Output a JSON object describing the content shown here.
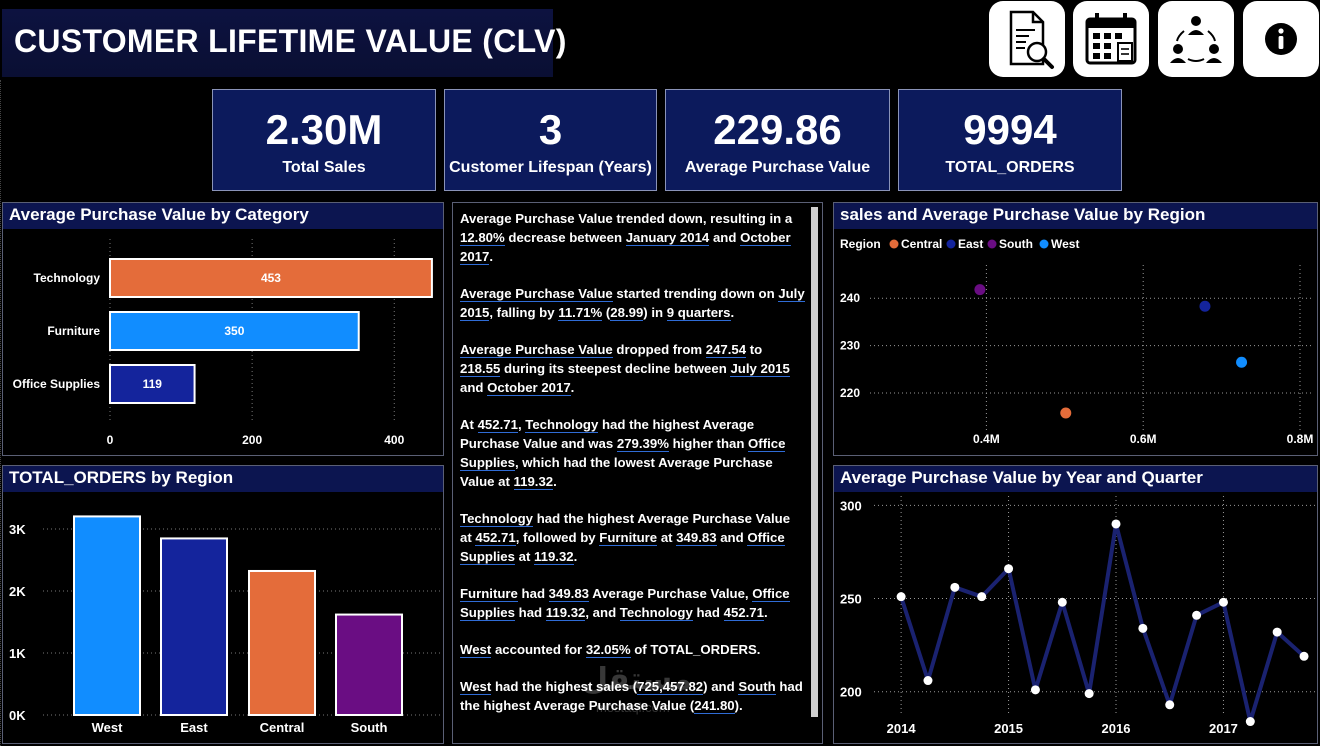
{
  "header": {
    "title": "CUSTOMER LIFETIME VALUE (CLV)"
  },
  "nav": [
    {
      "name": "report-search-icon"
    },
    {
      "name": "calendar-icon"
    },
    {
      "name": "team-network-icon"
    },
    {
      "name": "info-icon"
    }
  ],
  "kpis": [
    {
      "value": "2.30M",
      "label": "Total Sales"
    },
    {
      "value": "3",
      "label": "Customer Lifespan (Years)"
    },
    {
      "value": "229.86",
      "label": "Average Purchase Value"
    },
    {
      "value": "9994",
      "label": "TOTAL_ORDERS"
    }
  ],
  "panels": {
    "category": "Average Purchase Value by Category",
    "orders": "TOTAL_ORDERS by Region",
    "scatter": "sales and Average Purchase Value by Region",
    "trend": "Average Purchase Value by Year and Quarter"
  },
  "narrative": [
    [
      [
        "Average Purchase Value trended down, resulting in a ",
        0
      ],
      [
        "12.80%",
        1
      ],
      [
        " decrease between ",
        0
      ],
      [
        "January 2014",
        1
      ],
      [
        " and ",
        0
      ],
      [
        "October 2017",
        1
      ],
      [
        ".",
        0
      ]
    ],
    [
      [
        "Average Purchase Value",
        1
      ],
      [
        " started trending down on ",
        0
      ],
      [
        "July 2015",
        1
      ],
      [
        ", falling by ",
        0
      ],
      [
        "11.71%",
        1
      ],
      [
        " (",
        0
      ],
      [
        "28.99",
        1
      ],
      [
        ") in ",
        0
      ],
      [
        "9 quarters",
        1
      ],
      [
        ".",
        0
      ]
    ],
    [
      [
        "Average Purchase Value",
        1
      ],
      [
        " dropped from ",
        0
      ],
      [
        "247.54",
        1
      ],
      [
        " to ",
        0
      ],
      [
        "218.55",
        1
      ],
      [
        " during its steepest decline between ",
        0
      ],
      [
        "July 2015",
        1
      ],
      [
        " and ",
        0
      ],
      [
        "October 2017",
        1
      ],
      [
        ".",
        0
      ]
    ],
    [
      [
        "At ",
        0
      ],
      [
        "452.71",
        1
      ],
      [
        ", ",
        0
      ],
      [
        "Technology",
        1
      ],
      [
        " had the highest Average Purchase Value and was ",
        0
      ],
      [
        "279.39%",
        1
      ],
      [
        " higher than ",
        0
      ],
      [
        "Office Supplies",
        1
      ],
      [
        ", which had the lowest Average Purchase Value at ",
        0
      ],
      [
        "119.32",
        1
      ],
      [
        ".",
        0
      ]
    ],
    [
      [
        "Technology",
        1
      ],
      [
        " had the highest Average Purchase Value at ",
        0
      ],
      [
        "452.71",
        1
      ],
      [
        ", followed by ",
        0
      ],
      [
        "Furniture",
        1
      ],
      [
        " at ",
        0
      ],
      [
        "349.83",
        1
      ],
      [
        " and ",
        0
      ],
      [
        "Office Supplies",
        1
      ],
      [
        " at ",
        0
      ],
      [
        "119.32",
        1
      ],
      [
        ".",
        0
      ]
    ],
    [
      [
        "Furniture",
        1
      ],
      [
        " had ",
        0
      ],
      [
        "349.83",
        1
      ],
      [
        " Average Purchase Value, ",
        0
      ],
      [
        "Office Supplies",
        1
      ],
      [
        " had ",
        0
      ],
      [
        "119.32",
        1
      ],
      [
        ", and ",
        0
      ],
      [
        "Technology",
        1
      ],
      [
        " had ",
        0
      ],
      [
        "452.71",
        1
      ],
      [
        ".",
        0
      ]
    ],
    [
      [
        "West",
        1
      ],
      [
        " accounted for ",
        0
      ],
      [
        "32.05%",
        1
      ],
      [
        " of TOTAL_ORDERS.",
        0
      ]
    ],
    [
      [
        "West",
        1
      ],
      [
        " had the highest sales (",
        0
      ],
      [
        "725,457.82",
        1
      ],
      [
        ") and ",
        0
      ],
      [
        "South",
        1
      ],
      [
        " had the highest Average Purchase Value (",
        0
      ],
      [
        "241.80",
        1
      ],
      [
        ").",
        0
      ]
    ]
  ],
  "watermark": {
    "main": "مستقل",
    "sub": "mostaql.com"
  },
  "colors": {
    "Central": "#e46c3a",
    "East": "#14249c",
    "South": "#6a0d83",
    "West": "#118dff",
    "line": "#1a2270",
    "panel_header": "#0c1550",
    "kpi": "#0c1a5c"
  },
  "chart_data": [
    {
      "type": "bar",
      "orientation": "horizontal",
      "title": "Average Purchase Value by Category",
      "categories": [
        "Technology",
        "Furniture",
        "Office Supplies"
      ],
      "values": [
        453,
        350,
        119
      ],
      "bar_colors": [
        "#e46c3a",
        "#118dff",
        "#14249c"
      ],
      "xlim": [
        0,
        470
      ],
      "xticks": [
        0,
        200,
        400
      ],
      "grid": true
    },
    {
      "type": "bar",
      "title": "TOTAL_ORDERS by Region",
      "categories": [
        "West",
        "East",
        "Central",
        "South"
      ],
      "values": [
        3203,
        2848,
        2323,
        1620
      ],
      "bar_colors": [
        "#118dff",
        "#14249c",
        "#e46c3a",
        "#6a0d83"
      ],
      "ylim": [
        0,
        3500
      ],
      "yticks": [
        0,
        1000,
        2000,
        3000
      ],
      "ytick_labels": [
        "0K",
        "1K",
        "2K",
        "3K"
      ],
      "grid": true
    },
    {
      "type": "scatter",
      "title": "sales and Average Purchase Value by Region",
      "legend_title": "Region",
      "legend_position": "top-left",
      "series": [
        {
          "name": "Central",
          "x": 501240,
          "y": 215.8
        },
        {
          "name": "East",
          "x": 678781,
          "y": 238.3
        },
        {
          "name": "South",
          "x": 391722,
          "y": 241.8
        },
        {
          "name": "West",
          "x": 725458,
          "y": 226.5
        }
      ],
      "xlim": [
        300000,
        800000
      ],
      "xticks": [
        400000,
        600000,
        800000
      ],
      "xtick_labels": [
        "0.4M",
        "0.6M",
        "0.8M"
      ],
      "ylim": [
        212,
        247
      ],
      "yticks": [
        220,
        230,
        240
      ],
      "grid": true
    },
    {
      "type": "line",
      "title": "Average Purchase Value by Year and Quarter",
      "x": [
        2014.0,
        2014.25,
        2014.5,
        2014.75,
        2015.0,
        2015.25,
        2015.5,
        2015.75,
        2016.0,
        2016.25,
        2016.5,
        2016.75,
        2017.0,
        2017.25,
        2017.5,
        2017.75
      ],
      "values": [
        251,
        206,
        256,
        251,
        266,
        201,
        248,
        199,
        290,
        234,
        193,
        241,
        248,
        184,
        232,
        219
      ],
      "xticks": [
        2014,
        2015,
        2016,
        2017
      ],
      "xlim": [
        2013.85,
        2017.88
      ],
      "ylim": [
        180,
        305
      ],
      "yticks": [
        200,
        250,
        300
      ],
      "grid": true
    }
  ]
}
